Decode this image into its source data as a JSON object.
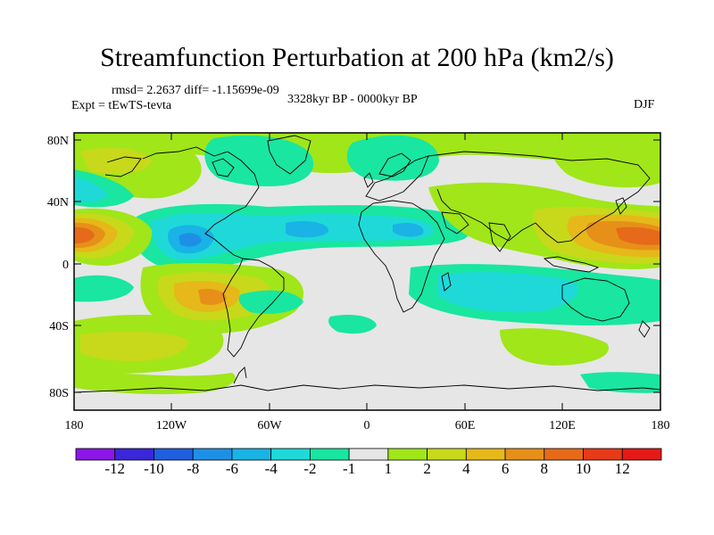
{
  "figure": {
    "title": "Streamfunction Perturbation at 200 hPa (km2/s)",
    "rmsd_line": "rmsd= 2.2637 diff= -1.15699e-09",
    "experiment": "Expt = tEwTS-tevta",
    "period": "3328kyr BP - 0000kyr BP",
    "season": "DJF"
  },
  "map": {
    "lat_ticks": [
      "80N",
      "40N",
      "0",
      "40S",
      "80S"
    ],
    "lon_ticks": [
      "180",
      "120W",
      "60W",
      "0",
      "60E",
      "120E",
      "180"
    ],
    "lat_range": [
      -90,
      90
    ],
    "lon_range": [
      -180,
      180
    ]
  },
  "colorbar": {
    "labels": [
      "-12",
      "-10",
      "-8",
      "-6",
      "-4",
      "-2",
      "-1",
      "1",
      "2",
      "4",
      "6",
      "8",
      "10",
      "12"
    ],
    "colors": [
      "#8a17e6",
      "#3a27d9",
      "#1f5fe0",
      "#1f8fe6",
      "#19b3e6",
      "#1fd9d9",
      "#19e6a0",
      "#e6e6e6",
      "#a0e619",
      "#c7d91a",
      "#e6b819",
      "#e69019",
      "#e66a19",
      "#e63a19",
      "#e61919"
    ]
  }
}
